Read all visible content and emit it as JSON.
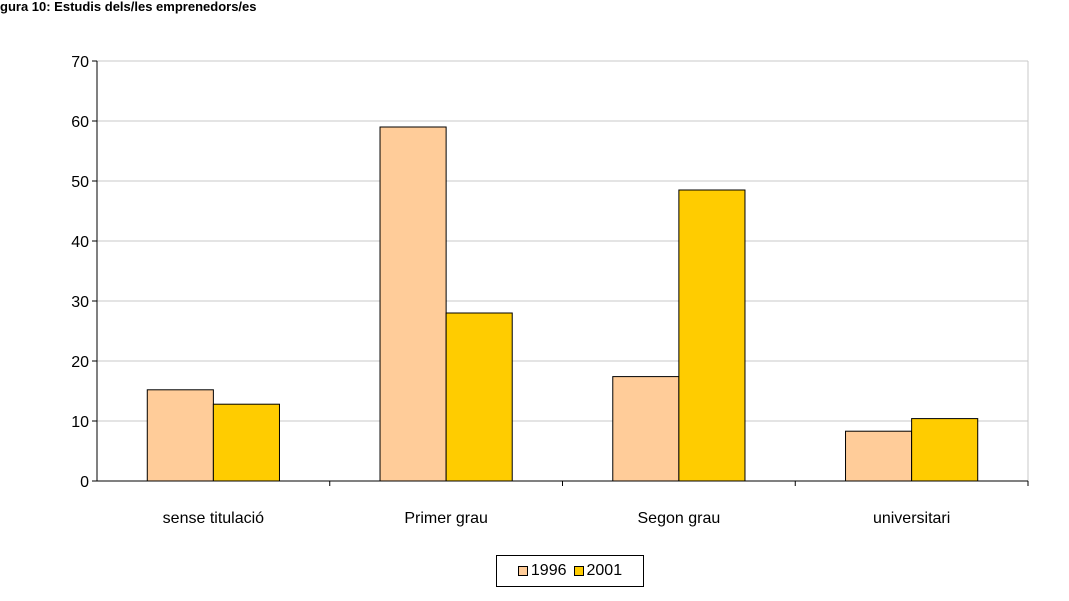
{
  "page": {
    "title": "gura 10: Estudis dels/les emprenedors/es"
  },
  "colors": {
    "series_1996": "#FFCC99",
    "series_2001": "#FFCC00",
    "gridline": "#c8c8c8",
    "axis": "#000000"
  },
  "chart_data": {
    "type": "bar",
    "categories": [
      "sense titulació",
      "Primer grau",
      "Segon grau",
      "universitari"
    ],
    "series": [
      {
        "name": "1996",
        "values": [
          15.2,
          59,
          17.4,
          8.3
        ],
        "color": "#FFCC99"
      },
      {
        "name": "2001",
        "values": [
          12.8,
          28,
          48.5,
          10.4
        ],
        "color": "#FFCC00"
      }
    ],
    "ylim": [
      0,
      70
    ],
    "yticks": [
      "0",
      "10",
      "20",
      "30",
      "40",
      "50",
      "60",
      "70"
    ],
    "grid": true,
    "legend_position": "bottom",
    "xlabel": "",
    "ylabel": ""
  }
}
